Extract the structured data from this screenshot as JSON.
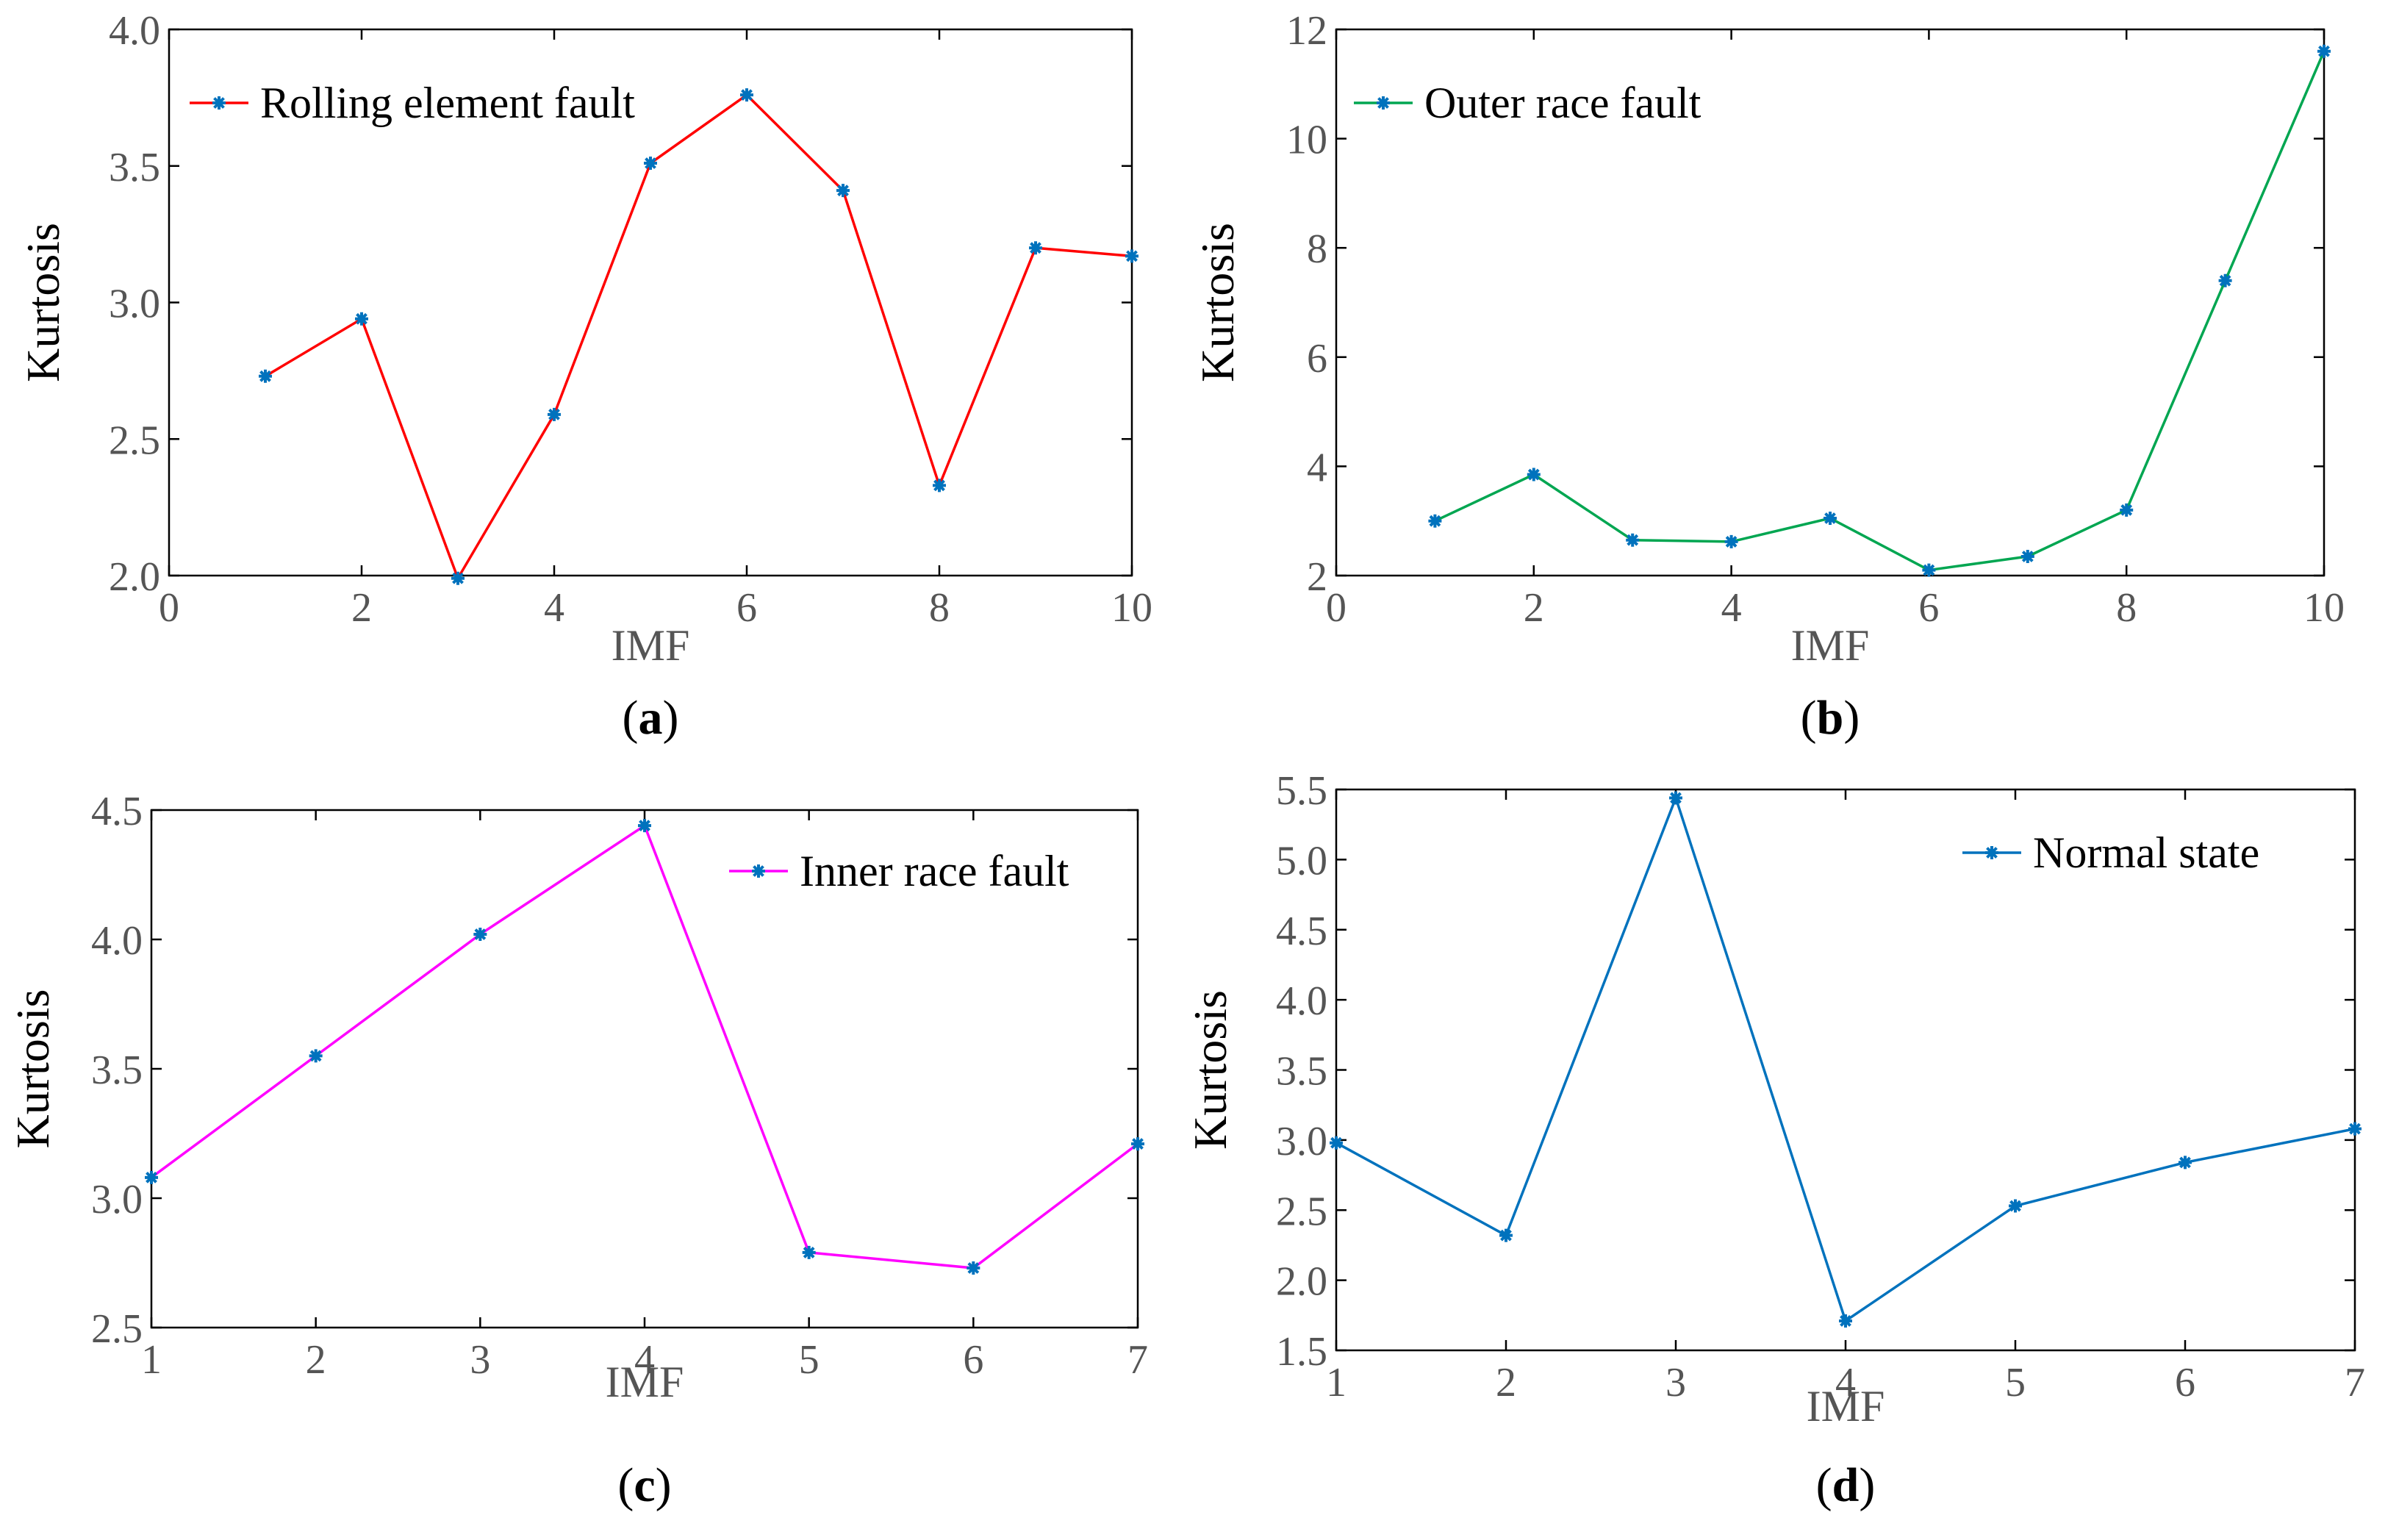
{
  "chart_data": [
    {
      "type": "line",
      "panel_label": "(a)",
      "panel_letter": "a",
      "xlabel": "IMF",
      "ylabel": "Kurtosis",
      "xlim": [
        0,
        10
      ],
      "ylim": [
        2.0,
        4.0
      ],
      "xticks": [
        "0",
        "2",
        "4",
        "6",
        "8",
        "10"
      ],
      "yticks": [
        "2.0",
        "2.5",
        "3.0",
        "3.5",
        "4.0"
      ],
      "series": [
        {
          "name": "Rolling element fault",
          "color": "#ff0000",
          "marker_color": "#0072bd",
          "x": [
            1,
            2,
            3,
            4,
            5,
            6,
            7,
            8,
            9,
            10
          ],
          "values": [
            2.73,
            2.94,
            1.99,
            2.59,
            3.51,
            3.76,
            3.41,
            2.33,
            3.2,
            3.17
          ]
        }
      ],
      "legend_position": "top-left"
    },
    {
      "type": "line",
      "panel_label": "(b)",
      "panel_letter": "b",
      "xlabel": "IMF",
      "ylabel": "Kurtosis",
      "xlim": [
        0,
        10
      ],
      "ylim": [
        2,
        12
      ],
      "xticks": [
        "0",
        "2",
        "4",
        "6",
        "8",
        "10"
      ],
      "yticks": [
        "2",
        "4",
        "6",
        "8",
        "10",
        "12"
      ],
      "series": [
        {
          "name": "Outer race fault",
          "color": "#00a651",
          "marker_color": "#0072bd",
          "x": [
            1,
            2,
            3,
            4,
            5,
            6,
            7,
            8,
            9,
            10
          ],
          "values": [
            3.0,
            3.85,
            2.65,
            2.62,
            3.05,
            2.1,
            2.35,
            3.2,
            7.4,
            11.6
          ]
        }
      ],
      "legend_position": "top-left"
    },
    {
      "type": "line",
      "panel_label": "(c)",
      "panel_letter": "c",
      "xlabel": "IMF",
      "ylabel": "Kurtosis",
      "xlim": [
        1,
        7
      ],
      "ylim": [
        2.5,
        4.5
      ],
      "xticks": [
        "1",
        "2",
        "3",
        "4",
        "5",
        "6",
        "7"
      ],
      "yticks": [
        "2.5",
        "3.0",
        "3.5",
        "4.0",
        "4.5"
      ],
      "series": [
        {
          "name": "Inner race fault",
          "color": "#ff00ff",
          "marker_color": "#0072bd",
          "x": [
            1,
            2,
            3,
            4,
            5,
            6,
            7
          ],
          "values": [
            3.08,
            3.55,
            4.02,
            4.44,
            2.79,
            2.73,
            3.21
          ]
        }
      ],
      "legend_position": "top-right"
    },
    {
      "type": "line",
      "panel_label": "(d)",
      "panel_letter": "d",
      "xlabel": "IMF",
      "ylabel": "Kurtosis",
      "xlim": [
        1,
        7
      ],
      "ylim": [
        1.5,
        5.5
      ],
      "xticks": [
        "1",
        "2",
        "3",
        "4",
        "5",
        "6",
        "7"
      ],
      "yticks": [
        "1.5",
        "2.0",
        "2.5",
        "3.0",
        "3.5",
        "4.0",
        "4.5",
        "5.0",
        "5.5"
      ],
      "series": [
        {
          "name": "Normal state",
          "color": "#0072bd",
          "marker_color": "#0072bd",
          "x": [
            1,
            2,
            3,
            4,
            5,
            6,
            7
          ],
          "values": [
            2.98,
            2.32,
            5.44,
            1.71,
            2.53,
            2.84,
            3.08
          ]
        }
      ],
      "legend_position": "top-right"
    }
  ]
}
